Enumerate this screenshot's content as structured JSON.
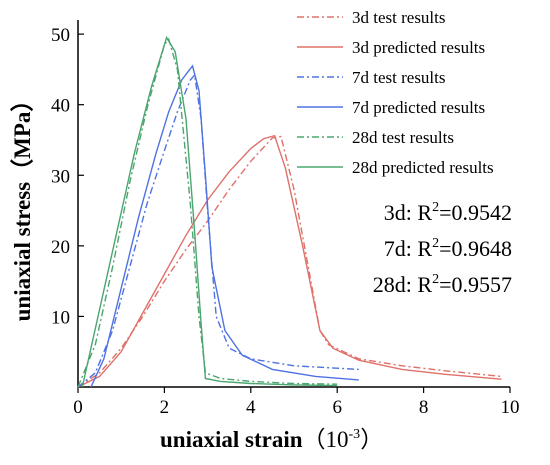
{
  "chart_data": {
    "type": "line",
    "xlabel": "uniaxial strain",
    "xlabel_unit_base": "（10",
    "xlabel_unit_exp": "-3",
    "xlabel_unit_close": "）",
    "ylabel": "uniaxial stress（MPa）",
    "xlim": [
      0,
      10
    ],
    "ylim": [
      0,
      52
    ],
    "xticks": [
      "0",
      "2",
      "4",
      "6",
      "8",
      "10"
    ],
    "yticks": [
      "10",
      "20",
      "30",
      "40",
      "50"
    ],
    "legend_position": "top-right",
    "series": [
      {
        "name": "3d test results",
        "style": "dashdot",
        "color": "#e0706a",
        "x": [
          0.0,
          0.5,
          1.0,
          1.5,
          2.0,
          2.5,
          3.0,
          3.5,
          4.0,
          4.5,
          4.7,
          5.0,
          5.3,
          5.6,
          5.8,
          6.5,
          7.5,
          8.5,
          9.8
        ],
        "y": [
          0.0,
          2.0,
          5.5,
          10.0,
          15.0,
          19.5,
          23.5,
          28.0,
          32.0,
          35.3,
          35.5,
          28.0,
          18.0,
          8.0,
          6.0,
          4.0,
          3.0,
          2.3,
          1.5
        ]
      },
      {
        "name": "3d predicted results",
        "style": "solid",
        "color": "#e0706a",
        "x": [
          0.0,
          0.5,
          1.0,
          1.5,
          2.0,
          2.5,
          3.0,
          3.5,
          4.0,
          4.3,
          4.55,
          4.8,
          5.2,
          5.6,
          5.9,
          6.5,
          7.5,
          8.5,
          9.8
        ],
        "y": [
          0.0,
          1.5,
          5.0,
          10.5,
          16.0,
          21.5,
          26.5,
          30.5,
          33.8,
          35.2,
          35.6,
          31.0,
          20.0,
          8.0,
          5.5,
          3.8,
          2.5,
          1.8,
          1.1
        ]
      },
      {
        "name": "7d test results",
        "style": "dashdot",
        "color": "#4f72e3",
        "x": [
          0.0,
          0.4,
          0.8,
          1.2,
          1.6,
          2.0,
          2.3,
          2.6,
          2.7,
          2.85,
          3.0,
          3.2,
          3.5,
          4.0,
          5.0,
          6.5
        ],
        "y": [
          0.0,
          2.0,
          8.0,
          17.0,
          26.0,
          33.5,
          39.0,
          43.5,
          44.2,
          38.0,
          25.0,
          10.0,
          5.5,
          4.0,
          3.0,
          2.5
        ]
      },
      {
        "name": "7d predicted results",
        "style": "solid",
        "color": "#4f72e3",
        "x": [
          0.3,
          0.6,
          1.0,
          1.4,
          1.8,
          2.1,
          2.4,
          2.65,
          2.8,
          2.95,
          3.1,
          3.4,
          3.8,
          4.5,
          5.5,
          6.5
        ],
        "y": [
          0.0,
          4.0,
          14.0,
          24.0,
          33.0,
          39.0,
          43.5,
          45.5,
          42.0,
          30.0,
          17.0,
          8.0,
          4.5,
          2.5,
          1.5,
          1.0
        ]
      },
      {
        "name": "28d test results",
        "style": "dashdot",
        "color": "#4ba56e",
        "x": [
          0.0,
          0.4,
          0.8,
          1.2,
          1.6,
          2.0,
          2.1,
          2.3,
          2.6,
          2.8,
          2.95,
          3.3,
          4.0,
          5.0,
          6.0
        ],
        "y": [
          0.0,
          6.0,
          17.0,
          29.0,
          39.5,
          48.5,
          49.3,
          45.0,
          26.0,
          10.0,
          2.0,
          1.2,
          0.8,
          0.5,
          0.4
        ]
      },
      {
        "name": "28d predicted results",
        "style": "solid",
        "color": "#4ba56e",
        "x": [
          0.1,
          0.5,
          0.9,
          1.3,
          1.7,
          2.05,
          2.25,
          2.5,
          2.7,
          2.85,
          2.95,
          3.3,
          4.0,
          5.0,
          6.0
        ],
        "y": [
          0.0,
          11.0,
          22.0,
          33.0,
          42.5,
          49.5,
          47.5,
          38.0,
          22.0,
          9.0,
          1.2,
          0.8,
          0.5,
          0.3,
          0.2
        ]
      }
    ],
    "annotations": [
      {
        "label": "3d: R",
        "sup": "2",
        "value": "=0.9542"
      },
      {
        "label": "7d: R",
        "sup": "2",
        "value": "=0.9648"
      },
      {
        "label": "28d: R",
        "sup": "2",
        "value": "=0.9557"
      }
    ]
  }
}
